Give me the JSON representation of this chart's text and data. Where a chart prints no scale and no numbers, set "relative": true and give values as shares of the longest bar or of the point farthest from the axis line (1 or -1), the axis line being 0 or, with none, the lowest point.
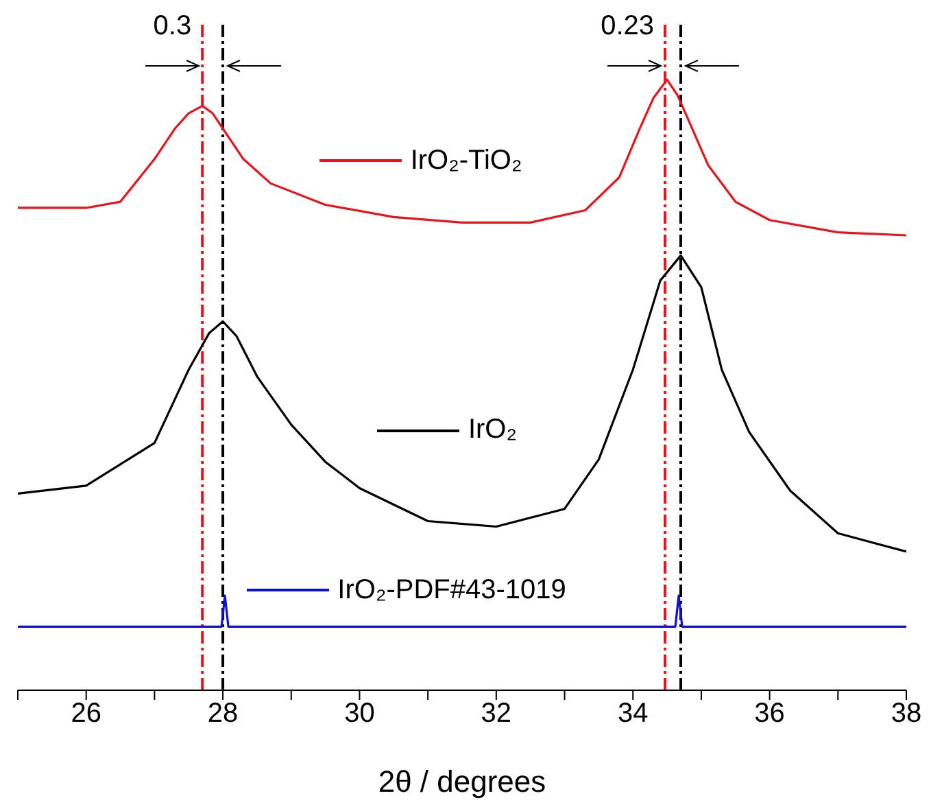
{
  "chart_data": {
    "type": "line",
    "relative": true,
    "xlabel": "2θ / degrees",
    "xlim": [
      25,
      38
    ],
    "xticks": [
      {
        "value": 25,
        "label": null
      },
      26,
      {
        "value": 27,
        "label": null
      },
      28,
      {
        "value": 29,
        "label": null
      },
      30,
      {
        "value": 31,
        "label": null
      },
      32,
      {
        "value": 33,
        "label": null
      },
      34,
      {
        "value": 35,
        "label": null
      },
      36,
      {
        "value": 37,
        "label": null
      },
      38
    ],
    "series": [
      {
        "name": "IrO₂-TiO₂",
        "color": "#e8141b",
        "x": [
          25,
          26,
          26.5,
          27,
          27.3,
          27.5,
          27.7,
          27.85,
          28,
          28.3,
          28.7,
          29.5,
          30.5,
          31.5,
          32.5,
          33.3,
          33.8,
          34.1,
          34.3,
          34.5,
          34.65,
          34.8,
          35.1,
          35.5,
          36,
          37,
          38
        ],
        "values": [
          0.79,
          0.79,
          0.8,
          0.87,
          0.92,
          0.945,
          0.957,
          0.945,
          0.92,
          0.87,
          0.83,
          0.795,
          0.775,
          0.766,
          0.766,
          0.786,
          0.84,
          0.92,
          0.97,
          1.0,
          0.975,
          0.937,
          0.86,
          0.8,
          0.77,
          0.75,
          0.745
        ]
      },
      {
        "name": "IrO₂",
        "color": "#000000",
        "x": [
          25,
          26,
          27,
          27.5,
          27.8,
          28,
          28.2,
          28.5,
          29,
          29.5,
          30,
          31,
          32,
          33,
          33.5,
          34,
          34.4,
          34.7,
          35,
          35.3,
          35.7,
          36.3,
          37,
          38
        ],
        "values": [
          0.322,
          0.335,
          0.405,
          0.525,
          0.585,
          0.604,
          0.58,
          0.514,
          0.435,
          0.374,
          0.331,
          0.277,
          0.268,
          0.297,
          0.378,
          0.525,
          0.671,
          0.712,
          0.66,
          0.525,
          0.423,
          0.327,
          0.257,
          0.227
        ]
      },
      {
        "name": "IrO₂-PDF#43-1019",
        "color": "#1010d0",
        "x": [
          25,
          27.98,
          28.03,
          28.08,
          34.62,
          34.67,
          34.72,
          38
        ],
        "values": [
          0.104,
          0.104,
          0.155,
          0.104,
          0.104,
          0.155,
          0.104,
          0.104
        ]
      }
    ],
    "ref_lines": [
      {
        "axis": "x",
        "value": 27.7,
        "color": "#e8141b",
        "line_style": "dashdot"
      },
      {
        "axis": "x",
        "value": 28.0,
        "color": "#000000",
        "line_style": "dashdot"
      },
      {
        "axis": "x",
        "value": 34.47,
        "color": "#e8141b",
        "line_style": "dashdot"
      },
      {
        "axis": "x",
        "value": 34.7,
        "color": "#000000",
        "line_style": "dashdot"
      }
    ],
    "annotations": [
      "0.3",
      "0.23"
    ],
    "line_style": "solid",
    "marker": "none",
    "legend": "top"
  }
}
